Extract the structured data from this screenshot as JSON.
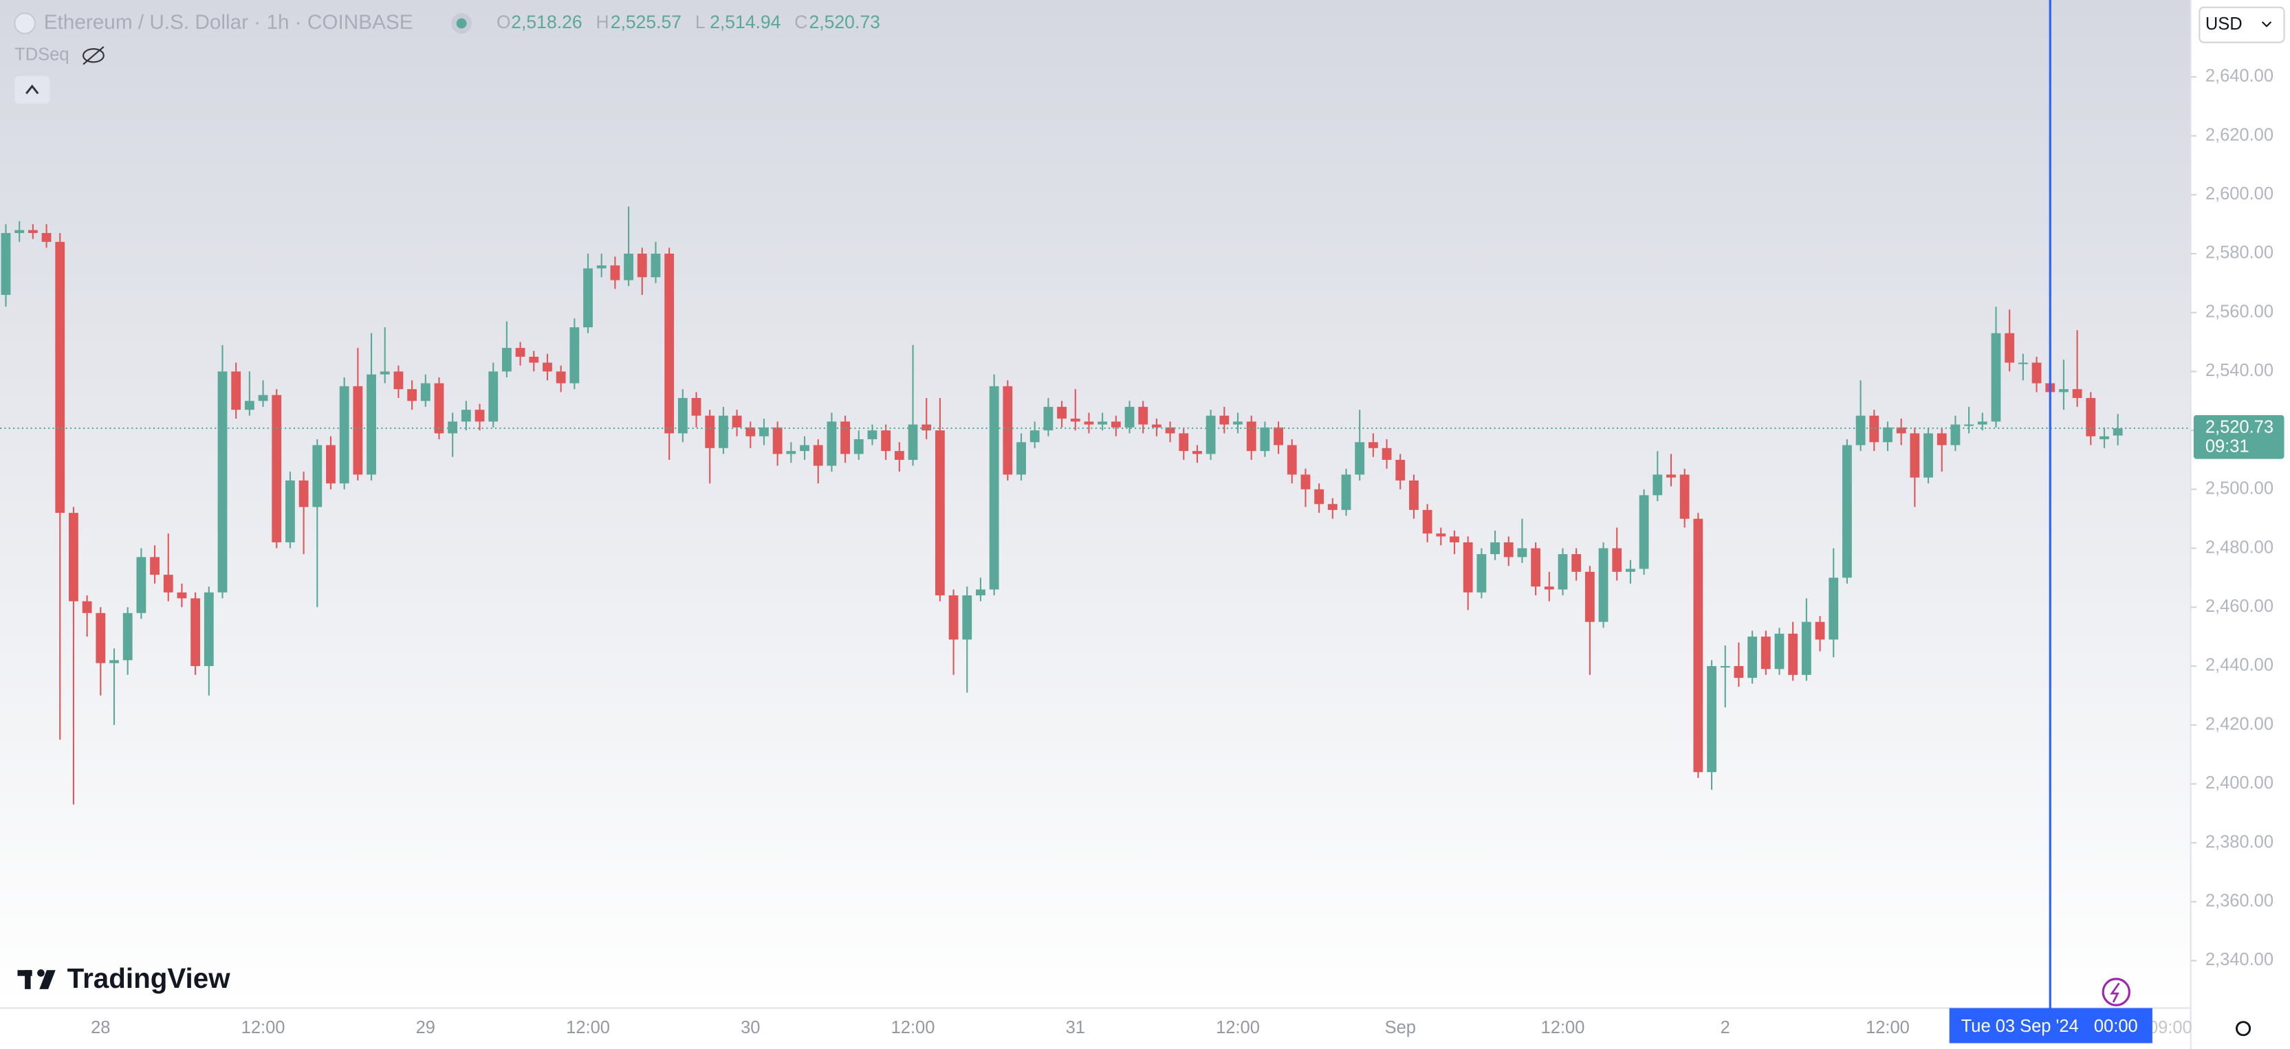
{
  "chart_data": {
    "type": "candlestick",
    "title": "Ethereum / U.S. Dollar · 1h · COINBASE",
    "ohlc_legend": [
      {
        "key": "O",
        "value": "2,518.26"
      },
      {
        "key": "H",
        "value": "2,525.57"
      },
      {
        "key": "L",
        "value": "2,514.94"
      },
      {
        "key": "C",
        "value": "2,520.73"
      }
    ],
    "indicator": "TDSeq",
    "currency": "USD",
    "price_label": {
      "price": "2,520.73",
      "countdown": "09:31"
    },
    "crosshair_label": {
      "date": "Tue 03 Sep '24",
      "time": "00:00"
    },
    "edge_time_label": "09:00",
    "brand": "TradingView",
    "up_color": "#5aa89a",
    "down_color": "#e0575a",
    "grid": false,
    "ylim": [
      2323.9,
      2666.1
    ],
    "yticks": [
      {
        "value": 2340,
        "label": "2,340.00"
      },
      {
        "value": 2360,
        "label": "2,360.00"
      },
      {
        "value": 2380,
        "label": "2,380.00"
      },
      {
        "value": 2400,
        "label": "2,400.00"
      },
      {
        "value": 2420,
        "label": "2,420.00"
      },
      {
        "value": 2440,
        "label": "2,440.00"
      },
      {
        "value": 2460,
        "label": "2,460.00"
      },
      {
        "value": 2480,
        "label": "2,480.00"
      },
      {
        "value": 2500,
        "label": "2,500.00"
      },
      {
        "value": 2520,
        "label": "2,520.00"
      },
      {
        "value": 2540,
        "label": "2,540.00"
      },
      {
        "value": 2560,
        "label": "2,560.00"
      },
      {
        "value": 2580,
        "label": "2,580.00"
      },
      {
        "value": 2600,
        "label": "2,600.00"
      },
      {
        "value": 2620,
        "label": "2,620.00"
      },
      {
        "value": 2640,
        "label": "2,640.00"
      }
    ],
    "categories": [
      null,
      null,
      null,
      null,
      null,
      null,
      null,
      "28",
      null,
      null,
      null,
      null,
      null,
      null,
      null,
      null,
      null,
      null,
      null,
      "12:00",
      null,
      null,
      null,
      null,
      null,
      null,
      null,
      null,
      null,
      null,
      null,
      "29",
      null,
      null,
      null,
      null,
      null,
      null,
      null,
      null,
      null,
      null,
      null,
      "12:00",
      null,
      null,
      null,
      null,
      null,
      null,
      null,
      null,
      null,
      null,
      null,
      "30",
      null,
      null,
      null,
      null,
      null,
      null,
      null,
      null,
      null,
      null,
      null,
      "12:00",
      null,
      null,
      null,
      null,
      null,
      null,
      null,
      null,
      null,
      null,
      null,
      "31",
      null,
      null,
      null,
      null,
      null,
      null,
      null,
      null,
      null,
      null,
      null,
      "12:00",
      null,
      null,
      null,
      null,
      null,
      null,
      null,
      null,
      null,
      null,
      null,
      "Sep",
      null,
      null,
      null,
      null,
      null,
      null,
      null,
      null,
      null,
      null,
      null,
      "12:00",
      null,
      null,
      null,
      null,
      null,
      null,
      null,
      null,
      null,
      null,
      null,
      "2",
      null,
      null,
      null,
      null,
      null,
      null,
      null,
      null,
      null,
      null,
      null,
      "12:00",
      null,
      null,
      null,
      null,
      null,
      null,
      null,
      null,
      null,
      null,
      null,
      null,
      null,
      null,
      null,
      null,
      null
    ],
    "open": [
      2566,
      2587,
      2588,
      2587,
      2584,
      2492,
      2462,
      2458,
      2441,
      2442,
      2458,
      2477,
      2471,
      2465,
      2463,
      2440,
      2465,
      2540,
      2527,
      2530,
      2532,
      2482,
      2503,
      2494,
      2515,
      2502,
      2535,
      2505,
      2539,
      2540,
      2534,
      2530,
      2536,
      2519,
      2523,
      2527,
      2523,
      2540,
      2548,
      2545,
      2543,
      2540,
      2536,
      2555,
      2575,
      2576,
      2571,
      2580,
      2572,
      2580,
      2519,
      2531,
      2525,
      2514,
      2525,
      2521,
      2518,
      2521,
      2512,
      2513,
      2515,
      2508,
      2523,
      2512,
      2517,
      2520,
      2513,
      2510,
      2522,
      2520,
      2464,
      2449,
      2464,
      2466,
      2535,
      2505,
      2516,
      2520,
      2528,
      2524,
      2523,
      2522,
      2523,
      2521,
      2528,
      2522,
      2521,
      2519,
      2513,
      2512,
      2525,
      2522,
      2523,
      2513,
      2521,
      2515,
      2505,
      2500,
      2495,
      2493,
      2505,
      2516,
      2514,
      2510,
      2503,
      2493,
      2485,
      2484,
      2482,
      2465,
      2478,
      2482,
      2477,
      2480,
      2467,
      2466,
      2478,
      2472,
      2455,
      2480,
      2472,
      2473,
      2498,
      2505,
      2505,
      2490,
      2404,
      2440,
      2440,
      2436,
      2450,
      2439,
      2451,
      2437,
      2455,
      2449,
      2470,
      2515,
      2525,
      2516,
      2521,
      2519,
      2504,
      2519,
      2515,
      2522,
      2522,
      2523,
      2553,
      2543,
      2543,
      2536,
      2533,
      2534,
      2531,
      2517,
      2518.26
    ],
    "high": [
      2590,
      2591,
      2590,
      2590,
      2587,
      2494,
      2464,
      2460,
      2446,
      2460,
      2480,
      2481,
      2485,
      2468,
      2465,
      2467,
      2549,
      2543,
      2540,
      2537,
      2534,
      2506,
      2506,
      2517,
      2518,
      2538,
      2548,
      2553,
      2555,
      2542,
      2537,
      2539,
      2538,
      2526,
      2530,
      2529,
      2543,
      2557,
      2550,
      2547,
      2546,
      2542,
      2558,
      2580,
      2580,
      2579,
      2596,
      2582,
      2584,
      2582,
      2534,
      2533,
      2527,
      2528,
      2527,
      2523,
      2524,
      2523,
      2516,
      2518,
      2517,
      2526,
      2525,
      2520,
      2522,
      2522,
      2516,
      2549,
      2531,
      2531,
      2466,
      2467,
      2470,
      2539,
      2537,
      2519,
      2523,
      2531,
      2530,
      2534,
      2526,
      2526,
      2525,
      2530,
      2530,
      2524,
      2523,
      2521,
      2515,
      2527,
      2528,
      2526,
      2525,
      2523,
      2523,
      2517,
      2507,
      2502,
      2497,
      2507,
      2527,
      2519,
      2517,
      2512,
      2505,
      2495,
      2487,
      2486,
      2484,
      2480,
      2486,
      2484,
      2490,
      2482,
      2472,
      2480,
      2480,
      2474,
      2482,
      2487,
      2476,
      2500,
      2513,
      2512,
      2507,
      2492,
      2442,
      2447,
      2448,
      2452,
      2452,
      2453,
      2455,
      2463,
      2457,
      2480,
      2517,
      2537,
      2527,
      2523,
      2524,
      2521,
      2521,
      2521,
      2525,
      2528,
      2526,
      2562,
      2561,
      2546,
      2545,
      2541,
      2544,
      2554,
      2533,
      2521,
      2525.57
    ],
    "low": [
      2562,
      2584,
      2585,
      2582,
      2415,
      2393,
      2450,
      2430,
      2420,
      2437,
      2456,
      2468,
      2462,
      2460,
      2437,
      2430,
      2463,
      2524,
      2525,
      2528,
      2480,
      2480,
      2478,
      2460,
      2500,
      2500,
      2503,
      2503,
      2536,
      2531,
      2527,
      2528,
      2517,
      2511,
      2520,
      2520,
      2521,
      2538,
      2542,
      2540,
      2537,
      2533,
      2534,
      2553,
      2572,
      2568,
      2569,
      2566,
      2570,
      2510,
      2516,
      2521,
      2502,
      2512,
      2518,
      2514,
      2515,
      2508,
      2509,
      2510,
      2502,
      2506,
      2509,
      2510,
      2515,
      2510,
      2506,
      2508,
      2517,
      2462,
      2437,
      2431,
      2462,
      2464,
      2503,
      2503,
      2514,
      2518,
      2521,
      2520,
      2519,
      2520,
      2518,
      2519,
      2519,
      2518,
      2516,
      2510,
      2509,
      2510,
      2519,
      2519,
      2510,
      2511,
      2512,
      2502,
      2494,
      2492,
      2490,
      2491,
      2503,
      2511,
      2507,
      2500,
      2490,
      2482,
      2481,
      2478,
      2459,
      2463,
      2476,
      2474,
      2475,
      2464,
      2462,
      2464,
      2469,
      2437,
      2453,
      2469,
      2468,
      2471,
      2496,
      2501,
      2487,
      2402,
      2398,
      2426,
      2433,
      2434,
      2437,
      2437,
      2435,
      2435,
      2445,
      2443,
      2468,
      2513,
      2513,
      2513,
      2515,
      2494,
      2502,
      2506,
      2513,
      2519,
      2520,
      2521,
      2540,
      2537,
      2533,
      2530,
      2527,
      2528,
      2515,
      2514,
      2514.94
    ],
    "close": [
      2587,
      2588,
      2587,
      2584,
      2492,
      2462,
      2458,
      2441,
      2442,
      2458,
      2477,
      2471,
      2465,
      2463,
      2440,
      2465,
      2540,
      2527,
      2530,
      2532,
      2482,
      2503,
      2494,
      2515,
      2502,
      2535,
      2505,
      2539,
      2540,
      2534,
      2530,
      2536,
      2519,
      2523,
      2527,
      2523,
      2540,
      2548,
      2545,
      2543,
      2540,
      2536,
      2555,
      2575,
      2576,
      2571,
      2580,
      2572,
      2580,
      2519,
      2531,
      2525,
      2514,
      2525,
      2521,
      2518,
      2521,
      2512,
      2513,
      2515,
      2508,
      2523,
      2512,
      2517,
      2520,
      2513,
      2510,
      2522,
      2520,
      2464,
      2449,
      2464,
      2466,
      2535,
      2505,
      2516,
      2520,
      2528,
      2524,
      2523,
      2522,
      2523,
      2521,
      2528,
      2522,
      2521,
      2519,
      2513,
      2512,
      2525,
      2522,
      2523,
      2513,
      2521,
      2515,
      2505,
      2500,
      2495,
      2493,
      2505,
      2516,
      2514,
      2510,
      2503,
      2493,
      2485,
      2484,
      2482,
      2465,
      2478,
      2482,
      2477,
      2480,
      2467,
      2466,
      2478,
      2472,
      2455,
      2480,
      2472,
      2473,
      2498,
      2505,
      2504,
      2490,
      2404,
      2440,
      2440,
      2436,
      2450,
      2439,
      2451,
      2437,
      2455,
      2449,
      2470,
      2515,
      2525,
      2516,
      2521,
      2519,
      2504,
      2519,
      2515,
      2522,
      2522,
      2523,
      2553,
      2543,
      2543,
      2536,
      2533,
      2534,
      2531,
      2518,
      2518,
      2520.73
    ]
  }
}
